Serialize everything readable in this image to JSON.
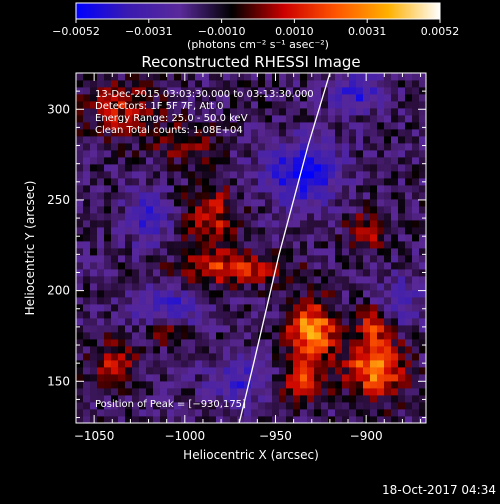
{
  "colorbar": {
    "ticks": [
      "−0.0052",
      "−0.0031",
      "−0.0010",
      "0.0010",
      "0.0031",
      "0.0052"
    ],
    "unit_label": "(photons cm⁻² s⁻¹ asec⁻²)",
    "range": [
      -0.0052,
      0.0052
    ],
    "colors": [
      "#0000ff",
      "#3a1ab0",
      "#5a2a9a",
      "#000000",
      "#cc0000",
      "#ff5500",
      "#ffb000",
      "#ffffff"
    ]
  },
  "chart_data": {
    "type": "heatmap",
    "title": "Reconstructed RHESSI Image",
    "xlabel": "Heliocentric X (arcsec)",
    "ylabel": "Heliocentric Y (arcsec)",
    "xlim": [
      -1060,
      -867
    ],
    "ylim": [
      127,
      320
    ],
    "xticks": [
      -1050,
      -1000,
      -950,
      -900
    ],
    "yticks": [
      150,
      200,
      250,
      300
    ],
    "xtick_labels": [
      "−1050",
      "−1000",
      "−950",
      "−900"
    ],
    "ytick_labels": [
      "150",
      "200",
      "250",
      "300"
    ],
    "annotations": [
      "13-Dec-2015 03:03:30.000 to 03:13:30.000",
      "Detectors: 1F 5F 7F, Att 0",
      "Energy Range: 25.0 - 50.0 keV",
      "Clean     Total counts: 1.08E+04"
    ],
    "peak_label": "Position of Peak = [−930,175]",
    "peak_position": [
      -930,
      175
    ],
    "limb": [
      [
        -970,
        127
      ],
      [
        -962,
        160
      ],
      [
        -955,
        190
      ],
      [
        -948,
        220
      ],
      [
        -940,
        250
      ],
      [
        -932,
        280
      ],
      [
        -920,
        320
      ]
    ],
    "sources": [
      {
        "x": -930,
        "y": 178,
        "sx": 9,
        "sy": 11,
        "amp": 0.0052
      },
      {
        "x": -895,
        "y": 158,
        "sx": 11,
        "sy": 11,
        "amp": 0.0046
      },
      {
        "x": -935,
        "y": 150,
        "sx": 9,
        "sy": 7,
        "amp": 0.0032
      },
      {
        "x": -1010,
        "y": 180,
        "sx": 7,
        "sy": 6,
        "amp": 0.0026
      },
      {
        "x": -1040,
        "y": 160,
        "sx": 9,
        "sy": 8,
        "amp": 0.0024
      },
      {
        "x": -975,
        "y": 212,
        "sx": 20,
        "sy": 6,
        "amp": 0.003
      },
      {
        "x": -985,
        "y": 240,
        "sx": 10,
        "sy": 14,
        "amp": 0.0026
      },
      {
        "x": -1035,
        "y": 300,
        "sx": 14,
        "sy": 10,
        "amp": 0.0024
      },
      {
        "x": -1000,
        "y": 282,
        "sx": 12,
        "sy": 7,
        "amp": 0.0018
      },
      {
        "x": -900,
        "y": 232,
        "sx": 7,
        "sy": 8,
        "amp": 0.0022
      },
      {
        "x": -895,
        "y": 182,
        "sx": 6,
        "sy": 6,
        "amp": 0.003
      },
      {
        "x": -1020,
        "y": 240,
        "sx": 8,
        "sy": 10,
        "amp": -0.003
      },
      {
        "x": -1010,
        "y": 190,
        "sx": 12,
        "sy": 8,
        "amp": -0.003
      },
      {
        "x": -935,
        "y": 265,
        "sx": 14,
        "sy": 12,
        "amp": -0.004
      },
      {
        "x": -905,
        "y": 310,
        "sx": 10,
        "sy": 7,
        "amp": -0.003
      },
      {
        "x": -970,
        "y": 150,
        "sx": 12,
        "sy": 9,
        "amp": -0.0025
      },
      {
        "x": -880,
        "y": 195,
        "sx": 8,
        "sy": 10,
        "amp": -0.002
      }
    ]
  },
  "footer": {
    "timestamp": "18-Oct-2017 04:34"
  }
}
